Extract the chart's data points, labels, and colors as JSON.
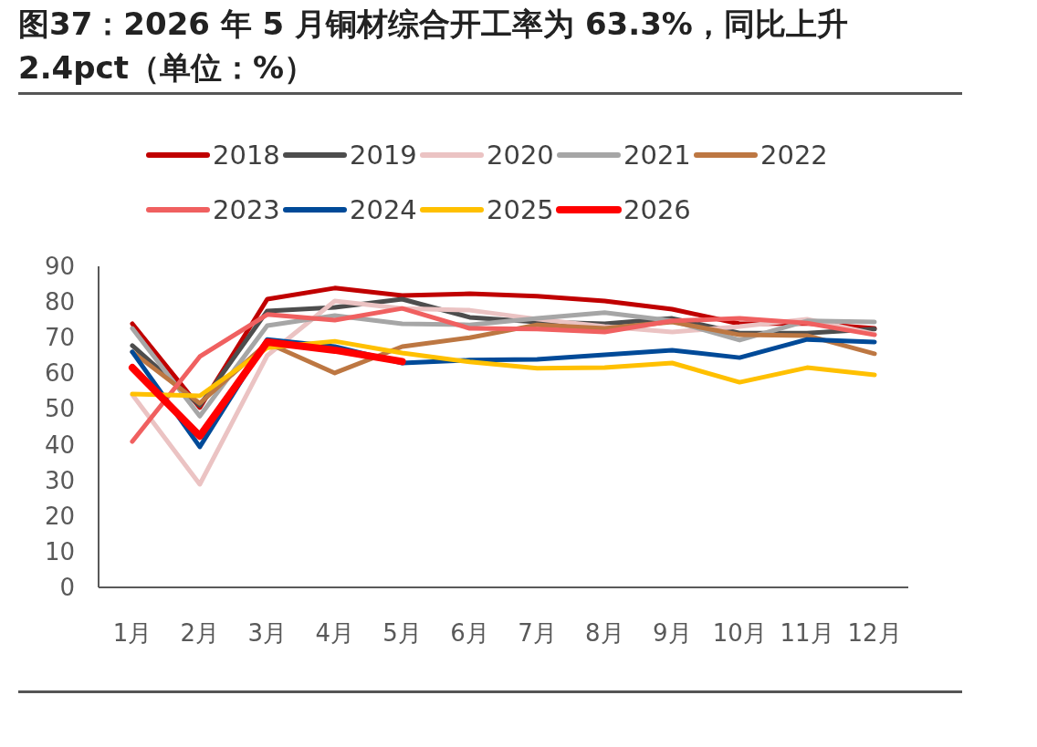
{
  "chart_data": {
    "type": "line",
    "title": "图37：2026 年 5 月铜材综合开工率为 63.3%，同比上升 2.4pct（单位：%）",
    "categories": [
      "1月",
      "2月",
      "3月",
      "4月",
      "5月",
      "6月",
      "7月",
      "8月",
      "9月",
      "10月",
      "11月",
      "12月"
    ],
    "series": [
      {
        "name": "2018",
        "color": "#c00000",
        "values": [
          73.9,
          50.4,
          80.8,
          83.9,
          81.8,
          82.3,
          81.6,
          80.3,
          78.0,
          73.9,
          74.0,
          72.6
        ]
      },
      {
        "name": "2019",
        "color": "#4d4d4d",
        "values": [
          67.8,
          51.0,
          77.5,
          78.5,
          80.8,
          75.7,
          74.4,
          73.9,
          75.4,
          71.3,
          71.3,
          72.4
        ]
      },
      {
        "name": "2020",
        "color": "#ebc3c3",
        "values": [
          54.0,
          28.9,
          65.0,
          80.3,
          78.2,
          77.7,
          75.2,
          73.1,
          71.6,
          73.1,
          75.2,
          71.0
        ]
      },
      {
        "name": "2021",
        "color": "#a6a6a6",
        "values": [
          72.6,
          48.0,
          73.4,
          76.2,
          73.9,
          73.6,
          75.4,
          77.0,
          74.7,
          69.3,
          74.7,
          74.4
        ]
      },
      {
        "name": "2022",
        "color": "#bd7742",
        "values": [
          66.0,
          51.6,
          68.5,
          60.1,
          67.5,
          70.0,
          73.6,
          72.6,
          74.4,
          70.8,
          70.6,
          65.5
        ]
      },
      {
        "name": "2023",
        "color": "#f06060",
        "values": [
          40.9,
          64.7,
          76.5,
          74.9,
          78.2,
          72.6,
          72.4,
          71.6,
          74.7,
          75.4,
          74.1,
          70.8
        ]
      },
      {
        "name": "2024",
        "color": "#004a98",
        "values": [
          66.0,
          39.4,
          69.5,
          67.5,
          62.9,
          63.7,
          63.9,
          65.2,
          66.5,
          64.4,
          69.5,
          68.8
        ]
      },
      {
        "name": "2025",
        "color": "#ffc000",
        "values": [
          54.2,
          53.7,
          67.2,
          69.0,
          65.7,
          63.2,
          61.4,
          61.6,
          62.9,
          57.5,
          61.6,
          59.6
        ]
      },
      {
        "name": "2026",
        "color": "#ff0000",
        "values": [
          61.6,
          42.4,
          68.8,
          66.5,
          63.3,
          null,
          null,
          null,
          null,
          null,
          null,
          null
        ]
      }
    ],
    "ylim": [
      0,
      90
    ],
    "yticks": [
      0,
      10,
      20,
      30,
      40,
      50,
      60,
      70,
      80,
      90
    ],
    "legend": "top",
    "grid": false,
    "marker": "none",
    "line_style": "solid"
  }
}
